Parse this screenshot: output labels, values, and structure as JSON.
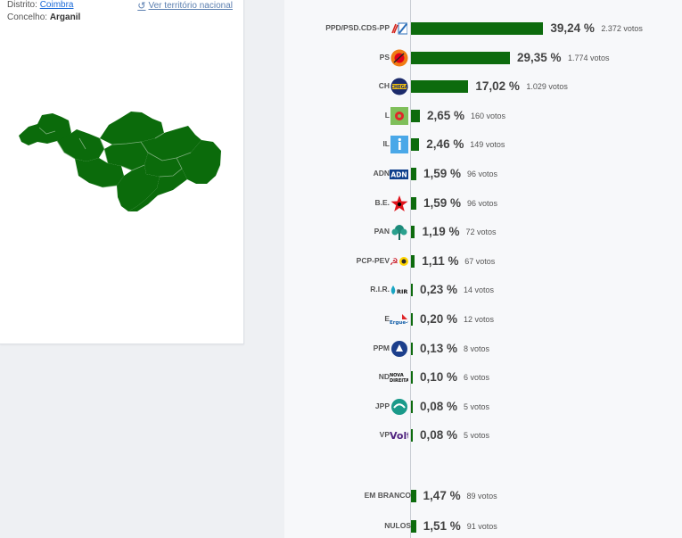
{
  "location": {
    "district_label": "Distrito:",
    "district_value": "Coimbra",
    "council_label": "Concelho:",
    "council_value": "Arganil",
    "reset_link": "Ver território nacional"
  },
  "colors": {
    "bar": "#0d6b0d",
    "map_fill": "#0b6b0b",
    "link": "#1a6ad8"
  },
  "results": [
    {
      "party": "PPD/PSD.CDS-PP",
      "pct": "39,24 %",
      "votes": "2.372 votos",
      "share": 39.24,
      "icon": "ad-logo-icon"
    },
    {
      "party": "PS",
      "pct": "29,35 %",
      "votes": "1.774 votos",
      "share": 29.35,
      "icon": "ps-rose-logo-icon"
    },
    {
      "party": "CH",
      "pct": "17,02 %",
      "votes": "1.029 votos",
      "share": 17.02,
      "icon": "chega-logo-icon"
    },
    {
      "party": "L",
      "pct": "2,65 %",
      "votes": "160 votos",
      "share": 2.65,
      "icon": "livre-logo-icon"
    },
    {
      "party": "IL",
      "pct": "2,46 %",
      "votes": "149 votos",
      "share": 2.46,
      "icon": "il-logo-icon"
    },
    {
      "party": "ADN",
      "pct": "1,59 %",
      "votes": "96 votos",
      "share": 1.59,
      "icon": "adn-logo-icon"
    },
    {
      "party": "B.E.",
      "pct": "1,59 %",
      "votes": "96 votos",
      "share": 1.59,
      "icon": "be-star-logo-icon"
    },
    {
      "party": "PAN",
      "pct": "1,19 %",
      "votes": "72 votos",
      "share": 1.19,
      "icon": "pan-tree-logo-icon"
    },
    {
      "party": "PCP-PEV",
      "pct": "1,11 %",
      "votes": "67 votos",
      "share": 1.11,
      "icon": "cdu-logo-icon"
    },
    {
      "party": "R.I.R.",
      "pct": "0,23 %",
      "votes": "14 votos",
      "share": 0.23,
      "icon": "rir-logo-icon"
    },
    {
      "party": "E",
      "pct": "0,20 %",
      "votes": "12 votos",
      "share": 0.2,
      "icon": "ergue-te-logo-icon"
    },
    {
      "party": "PPM",
      "pct": "0,13 %",
      "votes": "8 votos",
      "share": 0.13,
      "icon": "ppm-logo-icon"
    },
    {
      "party": "ND",
      "pct": "0,10 %",
      "votes": "6 votos",
      "share": 0.1,
      "icon": "nova-direita-logo-icon"
    },
    {
      "party": "JPP",
      "pct": "0,08 %",
      "votes": "5 votos",
      "share": 0.08,
      "icon": "jpp-logo-icon"
    },
    {
      "party": "VP",
      "pct": "0,08 %",
      "votes": "5 votos",
      "share": 0.08,
      "icon": "volt-logo-icon"
    }
  ],
  "other_results": [
    {
      "party": "EM BRANCO",
      "pct": "1,47 %",
      "votes": "89 votos",
      "share": 1.47
    },
    {
      "party": "NULOS",
      "pct": "1,51 %",
      "votes": "91 votos",
      "share": 1.51
    }
  ]
}
